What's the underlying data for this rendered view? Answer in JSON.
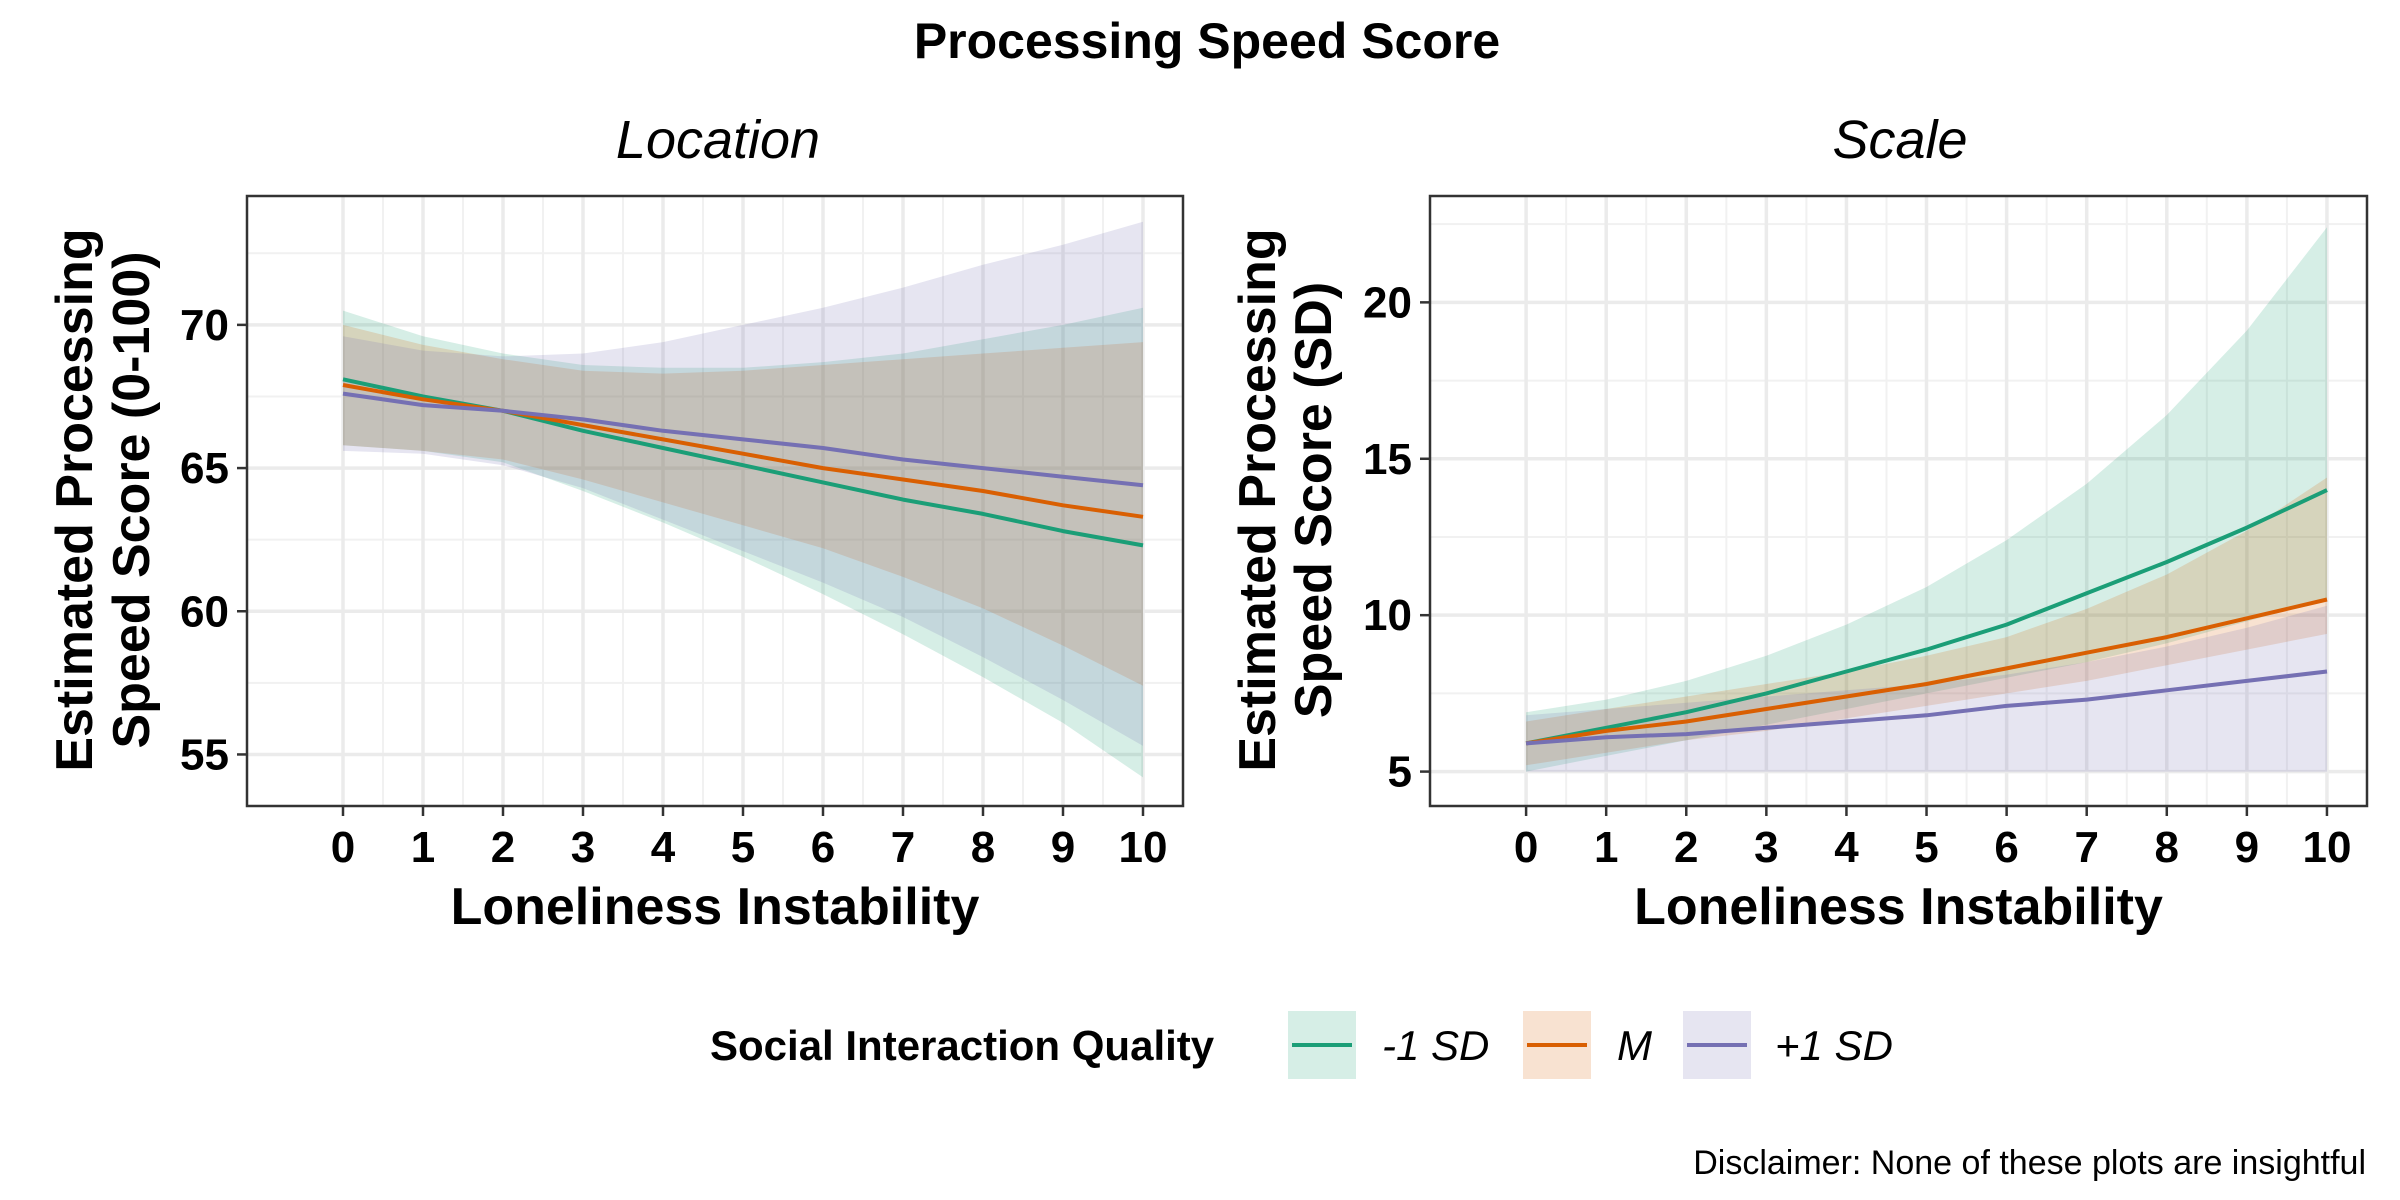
{
  "chart_data": {
    "title": "Processing Speed Score",
    "caption": "Disclaimer: None of these plots are insightful",
    "legend": {
      "title": "Social Interaction Quality",
      "position": "bottom",
      "items": [
        {
          "label": "-1 SD",
          "color": "#1b9e77"
        },
        {
          "label": "M",
          "color": "#d95f02"
        },
        {
          "label": "+1 SD",
          "color": "#7570b3"
        }
      ]
    },
    "panels": [
      {
        "type": "line",
        "facet_label": "Location",
        "xlabel": "Loneliness Instability",
        "ylabel": [
          "Estimated Processing",
          "Speed Score (0-100)"
        ],
        "xlim": [
          -1.2,
          10.5
        ],
        "ylim": [
          53.2,
          74.5
        ],
        "xticks": [
          0,
          1,
          2,
          3,
          4,
          5,
          6,
          7,
          8,
          9,
          10
        ],
        "yticks": [
          55,
          60,
          65,
          70
        ],
        "grid": true,
        "x": [
          0,
          1,
          2,
          3,
          4,
          5,
          6,
          7,
          8,
          9,
          10
        ],
        "series": [
          {
            "name": "-1 SD",
            "color": "#1b9e77",
            "y": [
              68.1,
              67.5,
              67.0,
              66.3,
              65.7,
              65.1,
              64.5,
              63.9,
              63.4,
              62.8,
              62.3
            ],
            "lower": [
              65.8,
              65.6,
              65.2,
              64.2,
              63.1,
              61.9,
              60.6,
              59.2,
              57.7,
              56.1,
              54.2
            ],
            "upper": [
              70.5,
              69.6,
              69.0,
              68.6,
              68.5,
              68.5,
              68.7,
              69.0,
              69.5,
              70.0,
              70.6
            ]
          },
          {
            "name": "M",
            "color": "#d95f02",
            "y": [
              67.9,
              67.4,
              67.0,
              66.5,
              66.0,
              65.5,
              65.0,
              64.6,
              64.2,
              63.7,
              63.3
            ],
            "lower": [
              65.8,
              65.6,
              65.3,
              64.6,
              63.8,
              63.0,
              62.2,
              61.2,
              60.1,
              58.8,
              57.4
            ],
            "upper": [
              70.0,
              69.3,
              68.8,
              68.4,
              68.3,
              68.4,
              68.6,
              68.8,
              69.0,
              69.2,
              69.4
            ]
          },
          {
            "name": "+1 SD",
            "color": "#7570b3",
            "y": [
              67.6,
              67.2,
              67.0,
              66.7,
              66.3,
              66.0,
              65.7,
              65.3,
              65.0,
              64.7,
              64.4
            ],
            "lower": [
              65.6,
              65.5,
              65.1,
              64.3,
              63.2,
              62.1,
              61.0,
              59.8,
              58.4,
              56.9,
              55.3
            ],
            "upper": [
              69.6,
              69.1,
              68.9,
              69.0,
              69.4,
              70.0,
              70.6,
              71.3,
              72.1,
              72.8,
              73.6
            ]
          }
        ]
      },
      {
        "type": "line",
        "facet_label": "Scale",
        "xlabel": "Loneliness Instability",
        "ylabel": [
          "Estimated Processing",
          "Speed Score (SD)"
        ],
        "xlim": [
          -1.2,
          10.5
        ],
        "ylim": [
          3.9,
          23.4
        ],
        "xticks": [
          0,
          1,
          2,
          3,
          4,
          5,
          6,
          7,
          8,
          9,
          10
        ],
        "yticks": [
          5,
          10,
          15,
          20
        ],
        "grid": true,
        "x": [
          0,
          1,
          2,
          3,
          4,
          5,
          6,
          7,
          8,
          9,
          10
        ],
        "series": [
          {
            "name": "-1 SD",
            "color": "#1b9e77",
            "y": [
              5.9,
              6.4,
              6.9,
              7.5,
              8.2,
              8.9,
              9.7,
              10.7,
              11.7,
              12.8,
              14.0
            ],
            "lower": [
              5.0,
              5.5,
              6.0,
              6.5,
              7.0,
              7.5,
              8.0,
              8.5,
              9.1,
              9.8,
              10.5
            ],
            "upper": [
              6.9,
              7.3,
              7.9,
              8.7,
              9.7,
              10.9,
              12.4,
              14.2,
              16.4,
              19.1,
              22.4
            ]
          },
          {
            "name": "M",
            "color": "#d95f02",
            "y": [
              5.9,
              6.3,
              6.6,
              7.0,
              7.4,
              7.8,
              8.3,
              8.8,
              9.3,
              9.9,
              10.5
            ],
            "lower": [
              5.2,
              5.6,
              6.0,
              6.3,
              6.7,
              7.1,
              7.5,
              7.9,
              8.4,
              8.9,
              9.4
            ],
            "upper": [
              6.6,
              7.0,
              7.4,
              7.8,
              8.2,
              8.7,
              9.3,
              10.2,
              11.3,
              12.7,
              14.4
            ]
          },
          {
            "name": "+1 SD",
            "color": "#7570b3",
            "y": [
              5.9,
              6.1,
              6.2,
              6.4,
              6.6,
              6.8,
              7.1,
              7.3,
              7.6,
              7.9,
              8.2
            ],
            "lower": [
              5.0,
              5.0,
              5.0,
              5.0,
              5.0,
              5.0,
              5.0,
              5.0,
              5.0,
              5.0,
              5.0
            ],
            "upper": [
              6.8,
              7.0,
              7.2,
              7.4,
              7.6,
              7.8,
              8.1,
              8.5,
              9.0,
              9.6,
              10.3
            ]
          }
        ]
      }
    ]
  }
}
